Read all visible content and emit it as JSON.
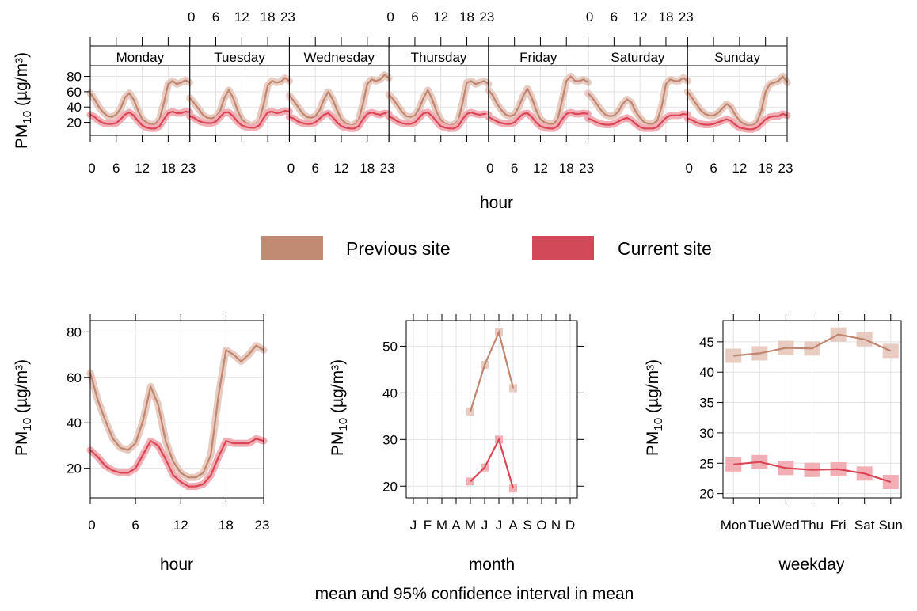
{
  "caption": "mean and 95% confidence interval in mean",
  "legend": [
    {
      "label": "Previous site",
      "color": "#C18A73"
    },
    {
      "label": "Current site",
      "color": "#D24A5A"
    }
  ],
  "colors": {
    "previous": "#BF8670",
    "current": "#D94656",
    "previous_band": "#E8CBC1",
    "current_band": "#F2AEB5"
  },
  "chart_data": [
    {
      "type": "line",
      "panel": "hour by weekday",
      "xlabel": "hour",
      "ylabel_main": "PM",
      "ylabel_sub": "10",
      "ylabel_unit": " (µg/m³)",
      "x_ticks": [
        "0",
        "6",
        "12",
        "18",
        "23"
      ],
      "y_ticks": [
        20,
        40,
        60,
        80
      ],
      "ylim": [
        3,
        94
      ],
      "days": [
        "Monday",
        "Tuesday",
        "Wednesday",
        "Thursday",
        "Friday",
        "Saturday",
        "Sunday"
      ],
      "series": [
        {
          "name": "Previous site",
          "days": [
            [
              58,
              50,
              40,
              33,
              28,
              27,
              30,
              38,
              52,
              58,
              50,
              36,
              24,
              20,
              17,
              18,
              24,
              45,
              70,
              74,
              70,
              72,
              75,
              72
            ],
            [
              52,
              45,
              38,
              30,
              26,
              25,
              27,
              35,
              52,
              62,
              52,
              36,
              24,
              19,
              16,
              17,
              22,
              42,
              68,
              74,
              72,
              73,
              78,
              74
            ],
            [
              55,
              48,
              40,
              32,
              27,
              26,
              28,
              36,
              50,
              60,
              50,
              36,
              24,
              19,
              16,
              17,
              23,
              44,
              70,
              76,
              74,
              76,
              82,
              78
            ],
            [
              56,
              50,
              42,
              34,
              28,
              27,
              29,
              38,
              52,
              62,
              50,
              34,
              23,
              18,
              16,
              17,
              22,
              45,
              72,
              74,
              70,
              72,
              74,
              70
            ],
            [
              62,
              55,
              44,
              36,
              30,
              28,
              30,
              40,
              54,
              64,
              52,
              36,
              24,
              20,
              18,
              18,
              24,
              48,
              74,
              80,
              74,
              74,
              76,
              72
            ],
            [
              58,
              52,
              44,
              36,
              30,
              28,
              29,
              34,
              44,
              50,
              46,
              34,
              26,
              20,
              18,
              18,
              22,
              40,
              70,
              76,
              74,
              74,
              78,
              74
            ],
            [
              60,
              52,
              44,
              36,
              31,
              29,
              29,
              32,
              38,
              44,
              40,
              30,
              22,
              18,
              16,
              16,
              20,
              34,
              60,
              70,
              72,
              74,
              80,
              72
            ]
          ]
        },
        {
          "name": "Current site",
          "days": [
            [
              30,
              27,
              22,
              19,
              18,
              18,
              19,
              24,
              30,
              33,
              29,
              22,
              16,
              13,
              12,
              12,
              15,
              24,
              32,
              34,
              32,
              32,
              34,
              33
            ],
            [
              28,
              26,
              22,
              20,
              19,
              19,
              21,
              27,
              33,
              33,
              28,
              21,
              16,
              14,
              13,
              13,
              16,
              25,
              33,
              34,
              32,
              33,
              35,
              34
            ],
            [
              27,
              25,
              21,
              19,
              18,
              18,
              20,
              25,
              30,
              32,
              27,
              20,
              15,
              13,
              12,
              12,
              15,
              24,
              31,
              33,
              31,
              30,
              32,
              31
            ],
            [
              28,
              25,
              21,
              19,
              18,
              18,
              20,
              26,
              32,
              33,
              28,
              21,
              15,
              13,
              12,
              12,
              15,
              24,
              31,
              33,
              31,
              30,
              31,
              30
            ],
            [
              27,
              24,
              21,
              19,
              18,
              18,
              20,
              26,
              31,
              32,
              27,
              20,
              15,
              13,
              12,
              12,
              15,
              24,
              31,
              33,
              31,
              31,
              32,
              31
            ],
            [
              25,
              23,
              20,
              18,
              17,
              17,
              18,
              21,
              24,
              26,
              23,
              18,
              14,
              12,
              12,
              12,
              14,
              20,
              26,
              29,
              29,
              29,
              31,
              30
            ],
            [
              25,
              23,
              20,
              18,
              17,
              17,
              18,
              20,
              22,
              24,
              22,
              17,
              13,
              12,
              11,
              11,
              13,
              18,
              24,
              27,
              28,
              28,
              31,
              29
            ]
          ]
        }
      ]
    },
    {
      "type": "line",
      "panel": "hour",
      "xlabel": "hour",
      "ylabel_main": "PM",
      "ylabel_sub": "10",
      "ylabel_unit": " (µg/m³)",
      "x_ticks": [
        "0",
        "6",
        "12",
        "18",
        "23"
      ],
      "y_ticks": [
        20,
        40,
        60,
        80
      ],
      "ylim": [
        7,
        85
      ],
      "series": [
        {
          "name": "Previous site",
          "values": [
            62,
            50,
            41,
            33,
            29,
            28,
            31,
            41,
            56,
            48,
            32,
            23,
            18,
            16,
            16,
            18,
            26,
            52,
            72,
            70,
            67,
            70,
            74,
            72
          ]
        },
        {
          "name": "Current site",
          "values": [
            28,
            25,
            21,
            19,
            18,
            18,
            20,
            26,
            32,
            30,
            24,
            17,
            14,
            12,
            12,
            13,
            17,
            25,
            32,
            31,
            31,
            31,
            33,
            32
          ]
        }
      ]
    },
    {
      "type": "line",
      "panel": "month",
      "xlabel": "month",
      "ylabel_main": "PM",
      "ylabel_sub": "10",
      "ylabel_unit": " (µg/m³)",
      "x_ticks": [
        "J",
        "F",
        "M",
        "A",
        "M",
        "J",
        "J",
        "A",
        "S",
        "O",
        "N",
        "D"
      ],
      "y_ticks": [
        20,
        30,
        40,
        50
      ],
      "ylim": [
        17.5,
        55.5
      ],
      "series": [
        {
          "name": "Previous site",
          "x": [
            5,
            6,
            7,
            8
          ],
          "values": [
            36,
            46,
            53,
            41
          ]
        },
        {
          "name": "Current site",
          "x": [
            5,
            6,
            7,
            8
          ],
          "values": [
            21,
            24,
            30,
            19.5
          ]
        }
      ]
    },
    {
      "type": "line",
      "panel": "weekday",
      "xlabel": "weekday",
      "ylabel_main": "PM",
      "ylabel_sub": "10",
      "ylabel_unit": " (µg/m³)",
      "categories": [
        "Mon",
        "Tue",
        "Wed",
        "Thu",
        "Fri",
        "Sat",
        "Sun"
      ],
      "y_ticks": [
        20,
        25,
        30,
        35,
        40,
        45
      ],
      "ylim": [
        19.3,
        48.5
      ],
      "series": [
        {
          "name": "Previous site",
          "values": [
            42.7,
            43.1,
            44,
            43.9,
            46.2,
            45.4,
            43.5
          ]
        },
        {
          "name": "Current site",
          "values": [
            24.8,
            25.2,
            24.2,
            23.9,
            24,
            23.3,
            21.9
          ]
        }
      ]
    }
  ]
}
